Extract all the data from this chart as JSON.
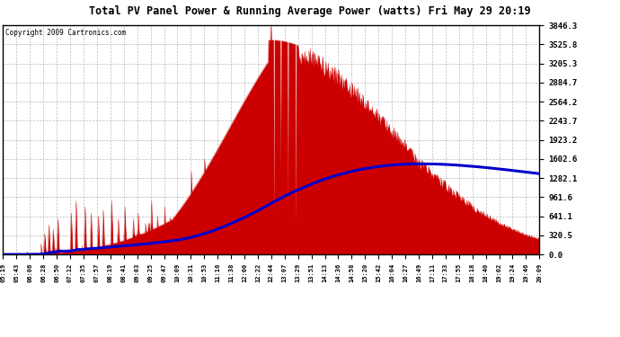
{
  "title": "Total PV Panel Power & Running Average Power (watts) Fri May 29 20:19",
  "copyright": "Copyright 2009 Cartronics.com",
  "background_color": "#ffffff",
  "plot_bg_color": "#ffffff",
  "yticks": [
    0.0,
    320.5,
    641.1,
    961.6,
    1282.1,
    1602.6,
    1923.2,
    2243.7,
    2564.2,
    2884.7,
    3205.3,
    3525.8,
    3846.3
  ],
  "ymax": 3846.3,
  "fill_color": "#cc0000",
  "line_color": "#0000cc",
  "grid_color": "#aaaaaa",
  "xtick_labels": [
    "05:19",
    "05:43",
    "06:06",
    "06:28",
    "06:50",
    "07:12",
    "07:35",
    "07:57",
    "08:19",
    "08:41",
    "09:03",
    "09:25",
    "09:47",
    "10:09",
    "10:31",
    "10:53",
    "11:16",
    "11:38",
    "12:00",
    "12:22",
    "12:44",
    "13:07",
    "13:29",
    "13:51",
    "14:13",
    "14:36",
    "14:58",
    "15:20",
    "15:42",
    "16:04",
    "16:27",
    "16:49",
    "17:11",
    "17:33",
    "17:55",
    "18:18",
    "18:40",
    "19:02",
    "19:24",
    "19:46",
    "20:09"
  ]
}
